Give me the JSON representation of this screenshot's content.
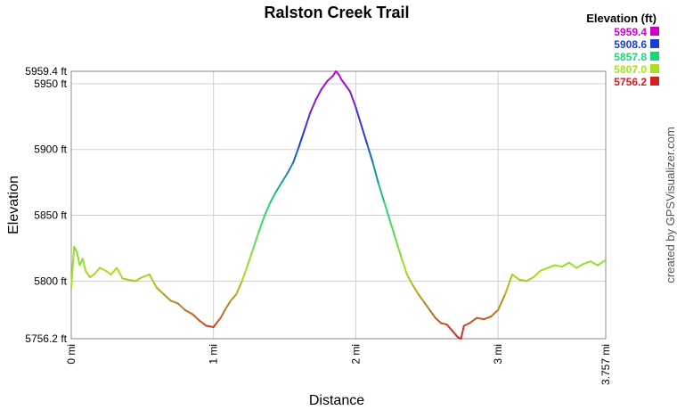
{
  "chart_data": {
    "type": "line",
    "title": "Ralston Creek Trail",
    "xlabel": "Distance",
    "ylabel": "Elevation",
    "credit": "created by GPSVisualizer.com",
    "xlim": [
      0,
      3.757
    ],
    "ylim": [
      5756.2,
      5959.4
    ],
    "grid": true,
    "x_ticks": [
      {
        "value": 0,
        "label": "0 mi"
      },
      {
        "value": 1,
        "label": "1 mi"
      },
      {
        "value": 2,
        "label": "2 mi"
      },
      {
        "value": 3,
        "label": "3 mi"
      },
      {
        "value": 3.757,
        "label": "3.757 mi"
      }
    ],
    "y_ticks": [
      {
        "value": 5756.2,
        "label": "5756.2 ft"
      },
      {
        "value": 5800,
        "label": "5800 ft"
      },
      {
        "value": 5850,
        "label": "5850 ft"
      },
      {
        "value": 5900,
        "label": "5900 ft"
      },
      {
        "value": 5950,
        "label": "5950 ft"
      },
      {
        "value": 5959.4,
        "label": "5959.4 ft"
      }
    ],
    "legend": {
      "title": "Elevation (ft)",
      "placement": "top-right",
      "entries": [
        {
          "label": "5959.4",
          "color": "#cc00cc"
        },
        {
          "label": "5908.6",
          "color": "#1a3fd6"
        },
        {
          "label": "5857.8",
          "color": "#1ed47a"
        },
        {
          "label": "5807.0",
          "color": "#a8e020"
        },
        {
          "label": "5756.2",
          "color": "#d42020"
        }
      ]
    },
    "series": [
      {
        "x": [
          0.0,
          0.02,
          0.04,
          0.06,
          0.08,
          0.1,
          0.13,
          0.16,
          0.2,
          0.24,
          0.28,
          0.32,
          0.36,
          0.4,
          0.45,
          0.5,
          0.55,
          0.6,
          0.65,
          0.7,
          0.75,
          0.8,
          0.85,
          0.9,
          0.95,
          1.0,
          1.02,
          1.05,
          1.08,
          1.12,
          1.16,
          1.2,
          1.24,
          1.28,
          1.32,
          1.36,
          1.4,
          1.44,
          1.48,
          1.52,
          1.56,
          1.6,
          1.64,
          1.68,
          1.72,
          1.76,
          1.8,
          1.84,
          1.86,
          1.88,
          1.9,
          1.92,
          1.96,
          2.0,
          2.04,
          2.08,
          2.12,
          2.16,
          2.2,
          2.24,
          2.28,
          2.32,
          2.36,
          2.4,
          2.44,
          2.48,
          2.52,
          2.56,
          2.6,
          2.64,
          2.68,
          2.72,
          2.74,
          2.76,
          2.8,
          2.85,
          2.9,
          2.95,
          3.0,
          3.05,
          3.1,
          3.15,
          3.2,
          3.25,
          3.3,
          3.35,
          3.4,
          3.45,
          3.5,
          3.55,
          3.6,
          3.65,
          3.7,
          3.757
        ],
        "y": [
          5795,
          5826,
          5822,
          5812,
          5817,
          5808,
          5803,
          5805,
          5810,
          5808,
          5805,
          5810,
          5802,
          5801,
          5800,
          5803,
          5805,
          5795,
          5790,
          5785,
          5783,
          5778,
          5775,
          5770,
          5766,
          5765,
          5768,
          5772,
          5778,
          5785,
          5790,
          5800,
          5812,
          5825,
          5838,
          5850,
          5860,
          5868,
          5875,
          5882,
          5890,
          5902,
          5915,
          5928,
          5938,
          5946,
          5952,
          5956,
          5959.4,
          5957,
          5953,
          5950,
          5944,
          5932,
          5918,
          5904,
          5890,
          5874,
          5860,
          5846,
          5832,
          5818,
          5805,
          5797,
          5790,
          5784,
          5778,
          5772,
          5768,
          5767,
          5762,
          5757,
          5756.2,
          5766,
          5768,
          5772,
          5771,
          5773,
          5778,
          5790,
          5805,
          5801,
          5800,
          5803,
          5808,
          5810,
          5812,
          5811,
          5814,
          5810,
          5813,
          5815,
          5812,
          5816
        ]
      }
    ]
  }
}
